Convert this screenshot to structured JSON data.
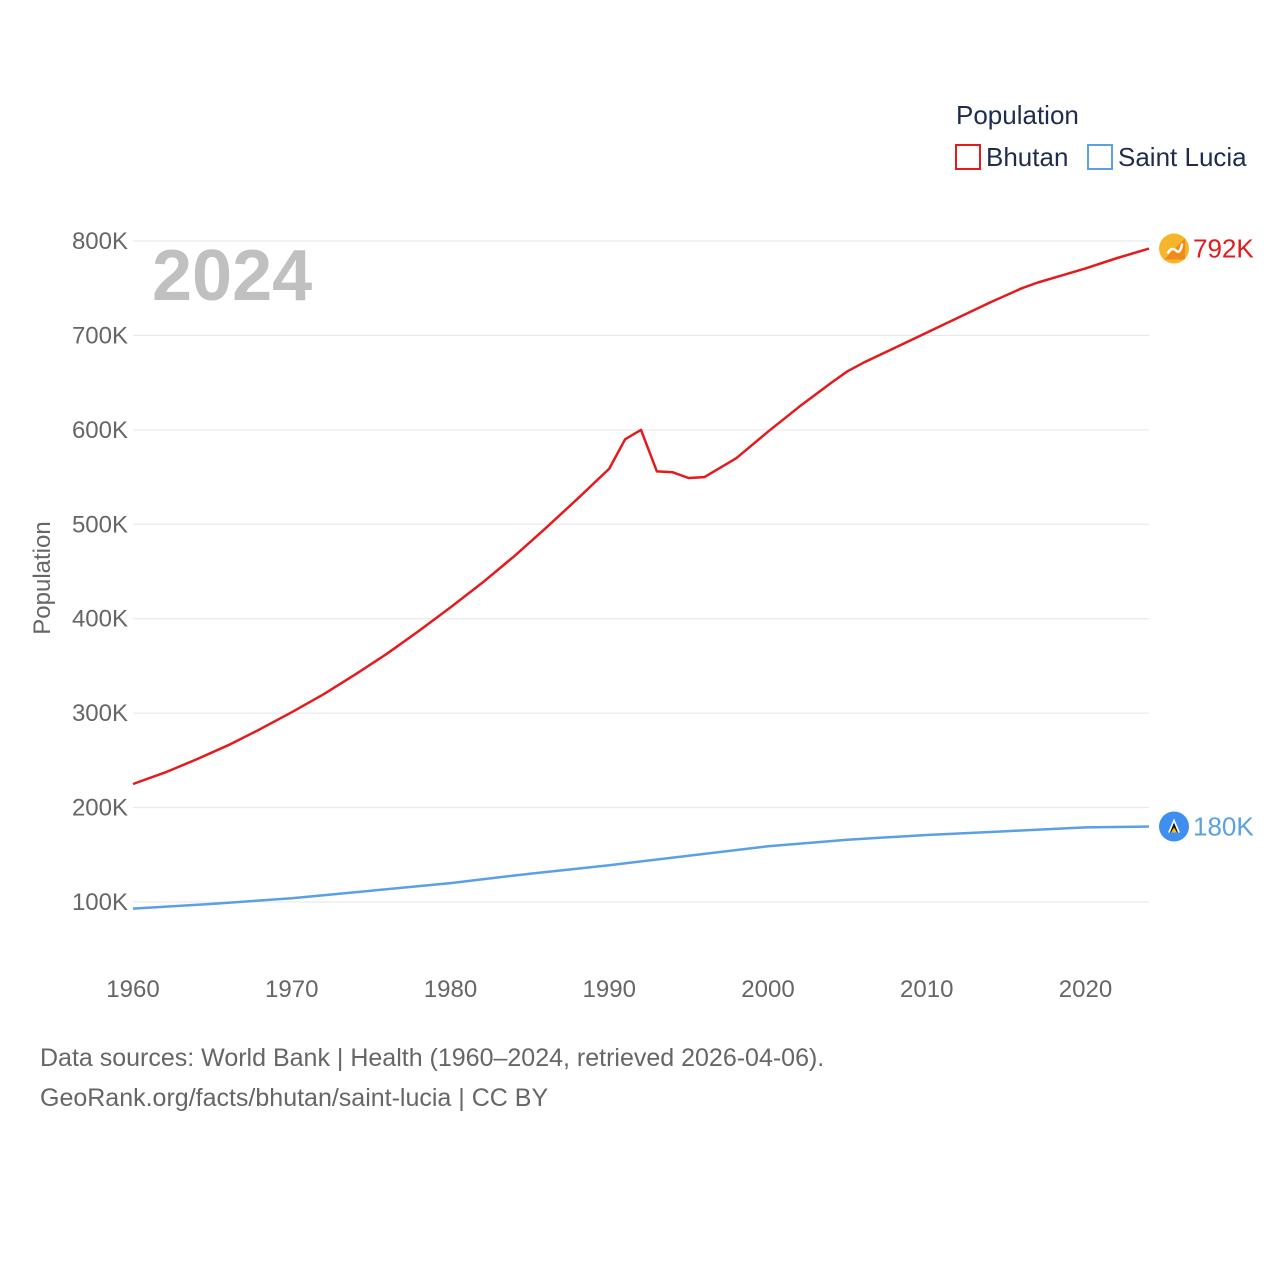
{
  "chart_data": {
    "type": "line",
    "title": "",
    "year_label": "2024",
    "ylabel": "Population",
    "xlabel": "",
    "xlim": [
      1960,
      2024
    ],
    "ylim": [
      40000,
      800000
    ],
    "x_ticks": [
      1960,
      1970,
      1980,
      1990,
      2000,
      2010,
      2020
    ],
    "y_ticks": [
      100000,
      200000,
      300000,
      400000,
      500000,
      600000,
      700000,
      800000
    ],
    "y_tick_labels": [
      "100K",
      "200K",
      "300K",
      "400K",
      "500K",
      "600K",
      "700K",
      "800K"
    ],
    "legend": {
      "title": "Population",
      "position": "top-right",
      "entries": [
        "Bhutan",
        "Saint Lucia"
      ]
    },
    "series": [
      {
        "name": "Bhutan",
        "color": "#e41a1c",
        "end_label": "792K",
        "flag_icon": "bhutan-flag-icon",
        "points": [
          [
            1960,
            225000
          ],
          [
            1962,
            237000
          ],
          [
            1964,
            251000
          ],
          [
            1966,
            266000
          ],
          [
            1968,
            283000
          ],
          [
            1970,
            301000
          ],
          [
            1972,
            320000
          ],
          [
            1974,
            341000
          ],
          [
            1976,
            363000
          ],
          [
            1978,
            387000
          ],
          [
            1980,
            412000
          ],
          [
            1982,
            438000
          ],
          [
            1984,
            466000
          ],
          [
            1986,
            496000
          ],
          [
            1988,
            527000
          ],
          [
            1990,
            559000
          ],
          [
            1991,
            590000
          ],
          [
            1992,
            600000
          ],
          [
            1993,
            556000
          ],
          [
            1994,
            555000
          ],
          [
            1995,
            549000
          ],
          [
            1996,
            550000
          ],
          [
            1998,
            570000
          ],
          [
            2000,
            598000
          ],
          [
            2002,
            625000
          ],
          [
            2004,
            650000
          ],
          [
            2005,
            662000
          ],
          [
            2006,
            671000
          ],
          [
            2008,
            687000
          ],
          [
            2010,
            703000
          ],
          [
            2012,
            719000
          ],
          [
            2014,
            735000
          ],
          [
            2016,
            750000
          ],
          [
            2017,
            756000
          ],
          [
            2018,
            761000
          ],
          [
            2020,
            771000
          ],
          [
            2022,
            782000
          ],
          [
            2024,
            792000
          ]
        ]
      },
      {
        "name": "Saint Lucia",
        "color": "#5aa0e6",
        "end_label": "180K",
        "flag_icon": "saint-lucia-flag-icon",
        "points": [
          [
            1960,
            93000
          ],
          [
            1965,
            98000
          ],
          [
            1970,
            104000
          ],
          [
            1975,
            112000
          ],
          [
            1980,
            120000
          ],
          [
            1985,
            130000
          ],
          [
            1990,
            139000
          ],
          [
            1995,
            149000
          ],
          [
            2000,
            159000
          ],
          [
            2005,
            166000
          ],
          [
            2010,
            171000
          ],
          [
            2015,
            175000
          ],
          [
            2020,
            179000
          ],
          [
            2024,
            180000
          ]
        ]
      }
    ]
  },
  "footer": {
    "line1": "Data sources: World Bank | Health (1960–2024, retrieved 2026-04-06).",
    "line2": "GeoRank.org/facts/bhutan/saint-lucia | CC BY"
  }
}
